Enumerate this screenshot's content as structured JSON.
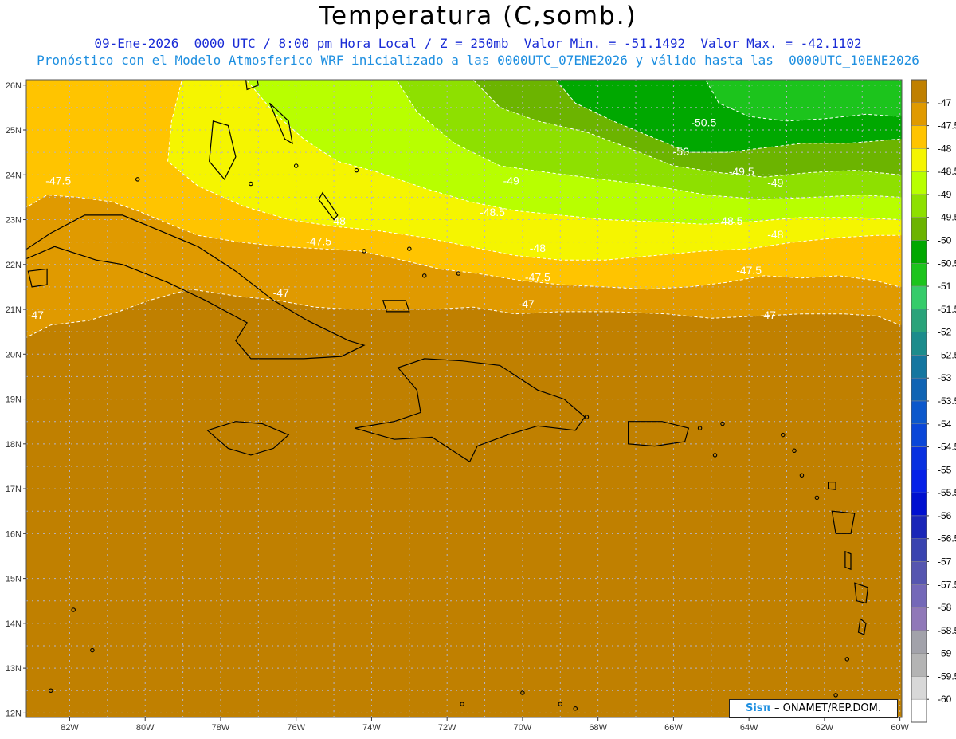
{
  "header": {
    "title": "Temperatura (C,somb.)",
    "line1": "09-Ene-2026  0000 UTC / 8:00 pm Hora Local / Z = 250mb  Valor Min. = -51.1492  Valor Max. = -42.1102",
    "line2": "Pronóstico con el Modelo Atmosferico WRF inicializado a las 0000UTC_07ENE2026 y válido hasta las  0000UTC_10ENE2026"
  },
  "map": {
    "lon_labels": [
      "82W",
      "80W",
      "78W",
      "76W",
      "74W",
      "72W",
      "70W",
      "68W",
      "66W",
      "64W",
      "62W",
      "60W"
    ],
    "lat_labels": [
      "26N",
      "25N",
      "24N",
      "23N",
      "22N",
      "21N",
      "20N",
      "19N",
      "18N",
      "17N",
      "16N",
      "15N",
      "14N",
      "13N",
      "12N"
    ],
    "contour_labels": [
      {
        "text": "-50.5",
        "lon": -65.2,
        "lat": 25.15
      },
      {
        "text": "-50",
        "lon": -65.8,
        "lat": 24.5
      },
      {
        "text": "-49.5",
        "lon": -64.2,
        "lat": 24.05
      },
      {
        "text": "-49",
        "lon": -70.3,
        "lat": 23.85
      },
      {
        "text": "-49",
        "lon": -63.3,
        "lat": 23.8
      },
      {
        "text": "-48.5",
        "lon": -70.8,
        "lat": 23.15
      },
      {
        "text": "-48.5",
        "lon": -64.5,
        "lat": 22.95
      },
      {
        "text": "-48",
        "lon": -74.9,
        "lat": 22.95
      },
      {
        "text": "-48",
        "lon": -69.6,
        "lat": 22.35
      },
      {
        "text": "-48",
        "lon": -63.3,
        "lat": 22.65
      },
      {
        "text": "-47.5",
        "lon": -82.3,
        "lat": 23.85
      },
      {
        "text": "-47.5",
        "lon": -75.4,
        "lat": 22.5
      },
      {
        "text": "-47.5",
        "lon": -69.6,
        "lat": 21.7
      },
      {
        "text": "-47.5",
        "lon": -64.0,
        "lat": 21.85
      },
      {
        "text": "-47",
        "lon": -76.4,
        "lat": 21.35
      },
      {
        "text": "-47",
        "lon": -69.9,
        "lat": 21.1
      },
      {
        "text": "-47",
        "lon": -82.9,
        "lat": 20.85
      },
      {
        "text": "-47",
        "lon": -63.5,
        "lat": 20.85
      }
    ]
  },
  "colorbar": {
    "labels": [
      "-47",
      "-47.5",
      "-48",
      "-48.5",
      "-49",
      "-49.5",
      "-50",
      "-50.5",
      "-51",
      "-51.5",
      "-52",
      "-52.5",
      "-53",
      "-53.5",
      "-54",
      "-54.5",
      "-55",
      "-55.5",
      "-56",
      "-56.5",
      "-57",
      "-57.5",
      "-58",
      "-58.5",
      "-59",
      "-59.5",
      "-60"
    ],
    "colors": [
      "#c08000",
      "#e09a00",
      "#ffc400",
      "#f5f500",
      "#b8ff00",
      "#8ee000",
      "#6cb400",
      "#00a800",
      "#1cc41c",
      "#36cc6a",
      "#2aa37a",
      "#1c8c8c",
      "#1476a0",
      "#1064b4",
      "#0c58cc",
      "#0a46d8",
      "#0830e0",
      "#0620e8",
      "#0010d0",
      "#1a26b8",
      "#3a44b0",
      "#5656b0",
      "#7468b8",
      "#9078b8",
      "#a2a2aa",
      "#b4b4b4",
      "#d8d8d8",
      "#ffffff"
    ]
  },
  "credit": {
    "logo": "Sisπ",
    "text": "– ONAMET/REP.DOM."
  }
}
